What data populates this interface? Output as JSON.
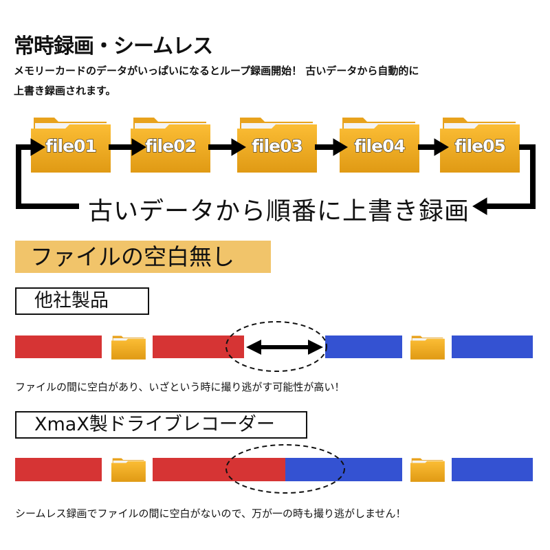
{
  "header": {
    "title": "常時録画・シームレス",
    "lead_line1": "メモリーカードのデータがいっぱいになるとループ録画開始！ 古いデータから自動的に",
    "lead_line2": "上書き録画されます。"
  },
  "loop": {
    "files": [
      "file01",
      "file02",
      "file03",
      "file04",
      "file05"
    ],
    "overwrite_text": "古いデータから順番に上書き録画"
  },
  "section": {
    "highlight": "ファイルの空白無し",
    "other": {
      "label": "他社製品",
      "caption": "ファイルの間に空白があり、いざという時に撮り逃がす可能性が高い！"
    },
    "xmax": {
      "label": "XmaX製ドライブレコーダー",
      "caption": "シームレス録画でファイルの間に空白がないので、万が一の時も撮り逃がしません！"
    }
  },
  "colors": {
    "red": "#d63434",
    "blue": "#3452d2",
    "folder": "#f2a91f",
    "highlight": "#f1c46a"
  }
}
